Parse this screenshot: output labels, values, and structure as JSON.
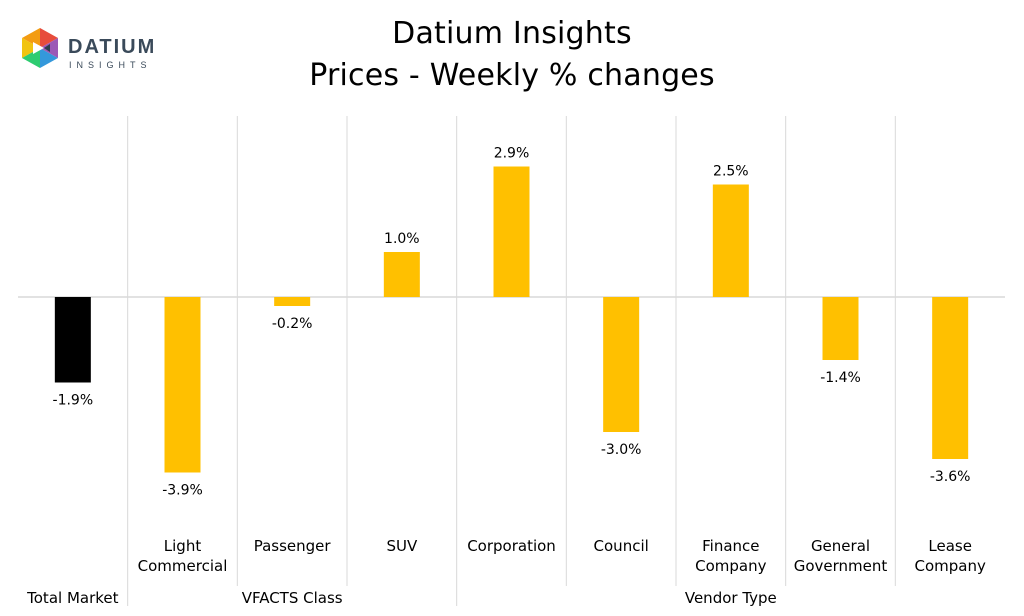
{
  "title": "Datium Insights",
  "subtitle": "Prices - Weekly % changes",
  "logo": {
    "brand": "DATIUM",
    "tagline": "INSIGHTS"
  },
  "colors": {
    "total_bar": "#000000",
    "bar": "#FFC000",
    "grid": "#d9d9d9"
  },
  "chart_data": {
    "type": "bar",
    "categories": [
      "",
      "Light Commercial",
      "Passenger",
      "SUV",
      "Corporation",
      "Council",
      "Finance Company",
      "General Government",
      "Lease Company"
    ],
    "category_lines": [
      [
        ""
      ],
      [
        "Light",
        "Commercial"
      ],
      [
        "Passenger"
      ],
      [
        "SUV"
      ],
      [
        "Corporation"
      ],
      [
        "Council"
      ],
      [
        "Finance",
        "Company"
      ],
      [
        "General",
        "Government"
      ],
      [
        "Lease",
        "Company"
      ]
    ],
    "values": [
      -1.9,
      -3.9,
      -0.2,
      1.0,
      2.9,
      -3.0,
      2.5,
      -1.4,
      -3.6
    ],
    "data_labels": [
      "-1.9%",
      "-3.9%",
      "-0.2%",
      "1.0%",
      "2.9%",
      "-3.0%",
      "2.5%",
      "-1.4%",
      "-3.6%"
    ],
    "groups": [
      {
        "label": "Total Market",
        "count": 1
      },
      {
        "label": "VFACTS Class",
        "count": 3
      },
      {
        "label": "Vendor Type",
        "count": 5
      }
    ],
    "ylim": [
      -5.5,
      4.1
    ],
    "legend": "none",
    "grid": false
  }
}
